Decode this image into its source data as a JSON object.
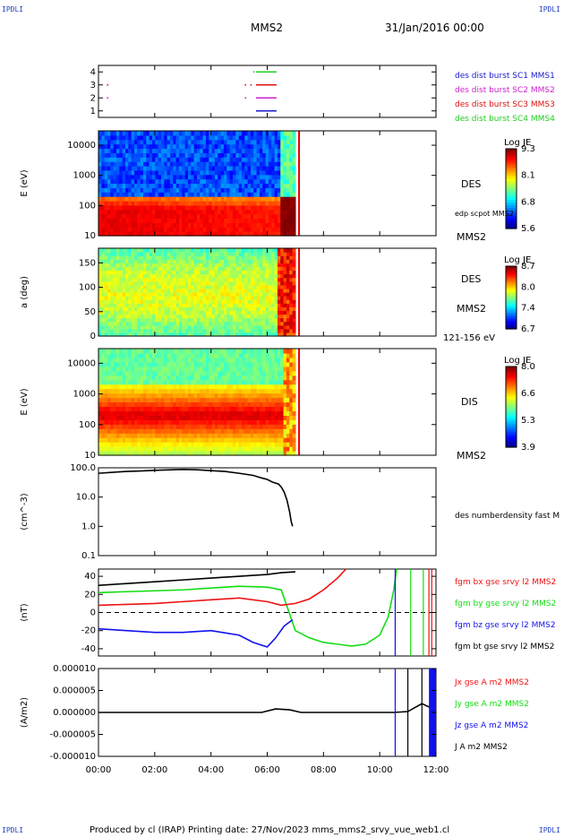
{
  "corners": {
    "tl": "IPDLI",
    "tr": "IPDLI",
    "bl": "IPDLI",
    "br": "IPDLI"
  },
  "header": {
    "title": "MMS2",
    "datetime": "31/Jan/2016 00:00"
  },
  "footer": "Produced by cl (IRAP)   Printing date: 27/Nov/2023   mms_mms2_srvy_vue_web1.cl",
  "colors": {
    "mms1": "#1a1acc",
    "mms2": "#cc22cc",
    "mms3": "#dd1111",
    "mms4": "#22cc22",
    "bx": "#ee1111",
    "by": "#11dd11",
    "bz": "#1111ee",
    "bt": "#000000"
  },
  "chart_data": [
    {
      "type": "scatter",
      "id": "availability",
      "ylim": [
        0.5,
        4.5
      ],
      "yticks": [
        "1",
        "2",
        "3",
        "4"
      ],
      "xlim": [
        0,
        12
      ],
      "legend": [
        "des dist burst SC1 MMS1",
        "des dist burst SC2 MMS2",
        "des dist burst SC3 MMS3",
        "des dist burst SC4 MMS4"
      ],
      "series": [
        {
          "name": "des dist burst SC1 MMS1",
          "y": 1,
          "segments": [
            [
              5.6,
              6.3
            ]
          ]
        },
        {
          "name": "des dist burst SC2 MMS2",
          "y": 2,
          "segments": [
            [
              0.3,
              0.32
            ],
            [
              5.2,
              5.22
            ],
            [
              5.6,
              6.3
            ]
          ]
        },
        {
          "name": "des dist burst SC3 MMS3",
          "y": 3,
          "segments": [
            [
              0.3,
              0.32
            ],
            [
              5.2,
              5.22
            ],
            [
              5.4,
              5.42
            ],
            [
              5.6,
              6.3
            ]
          ]
        },
        {
          "name": "des dist burst SC4 MMS4",
          "y": 4,
          "segments": [
            [
              5.5,
              5.52
            ],
            [
              5.6,
              6.3
            ]
          ]
        }
      ]
    },
    {
      "type": "heatmap",
      "id": "des-energy",
      "ylabel": "E (eV)",
      "yscale": "log",
      "ylim": [
        10,
        30000
      ],
      "yticks": [
        "10",
        "100",
        "1000",
        "10000"
      ],
      "xlim": [
        0,
        12
      ],
      "colorbar": {
        "title": "Log JE",
        "ticks": [
          "9.3",
          "8.1",
          "6.8",
          "5.6"
        ],
        "range": [
          5.6,
          9.3
        ]
      },
      "labels": {
        "species": "DES",
        "sc": "MMS2",
        "overlay": "edp scpot MMS2"
      }
    },
    {
      "type": "heatmap",
      "id": "des-pitch",
      "ylabel": "a (deg)",
      "ylim": [
        0,
        180
      ],
      "yticks": [
        "0",
        "50",
        "100",
        "150"
      ],
      "xlim": [
        0,
        12
      ],
      "colorbar": {
        "title": "Log JE",
        "ticks": [
          "8.7",
          "8.0",
          "7.4",
          "6.7"
        ],
        "range": [
          6.7,
          8.7
        ]
      },
      "labels": {
        "species": "DES",
        "sc": "MMS2",
        "energy": "121-156 eV"
      }
    },
    {
      "type": "heatmap",
      "id": "dis-energy",
      "ylabel": "E (eV)",
      "yscale": "log",
      "ylim": [
        10,
        30000
      ],
      "yticks": [
        "10",
        "100",
        "1000",
        "10000"
      ],
      "xlim": [
        0,
        12
      ],
      "colorbar": {
        "title": "Log JE",
        "ticks": [
          "8.0",
          "6.6",
          "5.3",
          "3.9"
        ],
        "range": [
          3.9,
          8.0
        ]
      },
      "labels": {
        "species": "DIS",
        "sc": "MMS2"
      }
    },
    {
      "type": "line",
      "id": "density",
      "ylabel": "(cm^-3)",
      "yscale": "log",
      "ylim": [
        0.1,
        100
      ],
      "yticks": [
        "0.1",
        "1.0",
        "10.0",
        "100.0"
      ],
      "xlim": [
        0,
        12
      ],
      "legend": [
        "des numberdensity fast M"
      ],
      "series": [
        {
          "name": "des numberdensity fast M",
          "x": [
            0.0,
            0.5,
            1.0,
            1.5,
            2.0,
            2.5,
            3.0,
            3.5,
            4.0,
            4.5,
            5.0,
            5.5,
            5.8,
            6.0,
            6.2,
            6.4,
            6.5,
            6.6,
            6.7,
            6.8,
            6.85,
            6.9
          ],
          "y": [
            65,
            70,
            75,
            78,
            82,
            85,
            88,
            86,
            80,
            75,
            65,
            55,
            45,
            40,
            32,
            28,
            22,
            15,
            8,
            3,
            1.5,
            1.0
          ]
        }
      ]
    },
    {
      "type": "line",
      "id": "fgm",
      "ylabel": "(nT)",
      "ylim": [
        -48,
        48
      ],
      "yticks": [
        "-40",
        "-20",
        "0",
        "20",
        "40"
      ],
      "xlim": [
        0,
        12
      ],
      "legend": [
        "fgm bx gse srvy l2 MMS2",
        "fgm by gse srvy l2 MMS2",
        "fgm bz gse srvy l2 MMS2",
        "fgm bt gse srvy l2 MMS2"
      ],
      "series": [
        {
          "name": "fgm bt gse srvy l2 MMS2",
          "x": [
            0,
            1,
            2,
            3,
            4,
            5,
            6,
            6.5,
            7.0
          ],
          "y": [
            30,
            32,
            34,
            36,
            38,
            40,
            42,
            44,
            45
          ]
        },
        {
          "name": "fgm by gse srvy l2 MMS2",
          "x": [
            0,
            1,
            2,
            3,
            4,
            5,
            6,
            6.5,
            7.0,
            7.5,
            8.0,
            8.5,
            9.0,
            9.5,
            10.0,
            10.3,
            10.5,
            10.6
          ],
          "y": [
            22,
            23,
            24,
            25,
            27,
            29,
            28,
            25,
            -20,
            -28,
            -33,
            -35,
            -37,
            -35,
            -25,
            -5,
            25,
            48
          ]
        },
        {
          "name": "fgm bx gse srvy l2 MMS2",
          "x": [
            0,
            1,
            2,
            3,
            4,
            5,
            6,
            6.5,
            7.0,
            7.5,
            8.0,
            8.5,
            8.8
          ],
          "y": [
            8,
            9,
            10,
            12,
            14,
            16,
            12,
            8,
            10,
            15,
            25,
            38,
            48
          ]
        },
        {
          "name": "fgm bz gse srvy l2 MMS2",
          "x": [
            0,
            1,
            2,
            3,
            4,
            5,
            5.5,
            6.0,
            6.3,
            6.6,
            6.9
          ],
          "y": [
            -18,
            -20,
            -22,
            -22,
            -20,
            -25,
            -33,
            -38,
            -28,
            -15,
            -8
          ]
        }
      ]
    },
    {
      "type": "line",
      "id": "current",
      "ylabel": "(A/m2)",
      "ylim": [
        -1e-05,
        1e-05
      ],
      "yticks": [
        "-0.000010",
        "-0.000005",
        "0.000000",
        "0.000005",
        "0.000010"
      ],
      "xlim": [
        0,
        12
      ],
      "xticks": [
        "00:00",
        "02:00",
        "04:00",
        "06:00",
        "08:00",
        "10:00",
        "12:00"
      ],
      "legend": [
        "Jx gse A m2 MMS2",
        "Jy gse A m2 MMS2",
        "Jz gse A m2 MMS2",
        "J A m2 MMS2"
      ],
      "series": [
        {
          "name": "J A m2 MMS2",
          "x": [
            0,
            5.8,
            6.3,
            6.8,
            7.2,
            10.5,
            11.0,
            11.5,
            12
          ],
          "y": [
            0,
            0,
            8e-07,
            6e-07,
            0,
            0,
            2e-07,
            2e-06,
            5e-07
          ]
        }
      ]
    }
  ]
}
